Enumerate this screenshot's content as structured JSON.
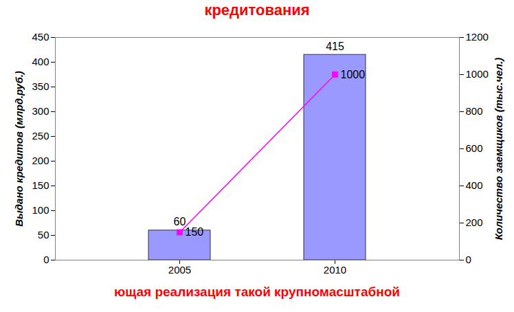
{
  "chart_data": {
    "type": "bar",
    "title": "кредитования",
    "caption": "ющая реализация такой крупномасштабной",
    "categories": [
      "2005",
      "2010"
    ],
    "ylabel": "Выдано кредитов (млрд.руб.)",
    "y2label": "Количество заемщиков (тыс.чел.)",
    "series": [
      {
        "type": "bar",
        "color": "#9999ff",
        "values": [
          60,
          415
        ]
      },
      {
        "type": "line",
        "axis": "y2",
        "color": "#ff00ff",
        "marker": "square",
        "values": [
          150,
          1000
        ]
      }
    ],
    "ylim": [
      0,
      450
    ],
    "yticks": [
      0,
      50,
      100,
      150,
      200,
      250,
      300,
      350,
      400,
      450
    ],
    "y2lim": [
      0,
      1200
    ],
    "y2ticks": [
      0,
      200,
      400,
      600,
      800,
      1000,
      1200
    ],
    "data_labels": true,
    "grid": false
  }
}
